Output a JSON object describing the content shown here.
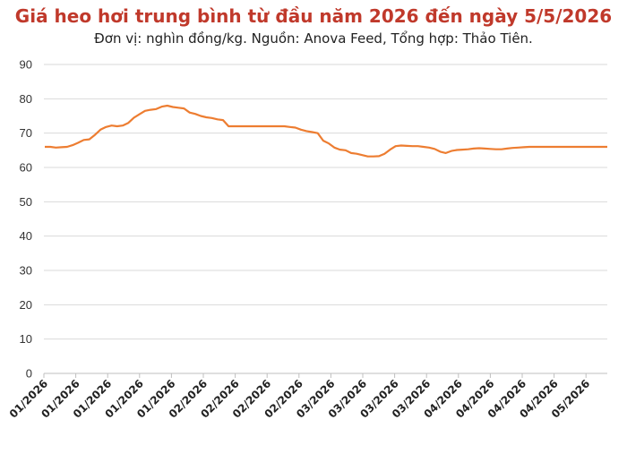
{
  "chart_data": {
    "type": "line",
    "title": "Giá heo hơi trung bình từ đầu năm 2026 đến ngày 5/5/2026",
    "subtitle": "Đơn vị: nghìn đồng/kg. Nguồn: Anova Feed, Tổng hợp: Thảo Tiên.",
    "xlabel": "",
    "ylabel": "",
    "ylim": [
      0,
      90
    ],
    "yticks": [
      0,
      10,
      20,
      30,
      40,
      50,
      60,
      70,
      80,
      90
    ],
    "grid": true,
    "legend": "none",
    "line_color": "#ed7d31",
    "grid_color": "#d9d9d9",
    "xtick_labels": [
      "01/2026",
      "01/2026",
      "01/2026",
      "01/2026",
      "01/2026",
      "02/2026",
      "02/2026",
      "02/2026",
      "02/2026",
      "03/2026",
      "03/2026",
      "03/2026",
      "03/2026",
      "04/2026",
      "04/2026",
      "04/2026",
      "04/2026",
      "05/2026"
    ],
    "series": [
      {
        "values": [
          66,
          66,
          65.8,
          65.9,
          66,
          66.5,
          67.2,
          68,
          68.2,
          69.5,
          71,
          71.8,
          72.2,
          72,
          72.2,
          73,
          74.5,
          75.5,
          76.5,
          76.8,
          77,
          77.7,
          78,
          77.6,
          77.4,
          77.2,
          76,
          75.6,
          75,
          74.6,
          74.4,
          74,
          73.8,
          72,
          72,
          72,
          72,
          72,
          72,
          72,
          72,
          72,
          72,
          72,
          71.8,
          71.6,
          71,
          70.6,
          70.3,
          70,
          67.8,
          67,
          65.8,
          65.2,
          65,
          64.2,
          64,
          63.6,
          63.2,
          63.2,
          63.3,
          64,
          65.2,
          66.2,
          66.4,
          66.3,
          66.2,
          66.2,
          66,
          65.8,
          65.4,
          64.6,
          64.2,
          64.8,
          65.1,
          65.2,
          65.3,
          65.5,
          65.6,
          65.5,
          65.4,
          65.3,
          65.3,
          65.5,
          65.7,
          65.8,
          65.9,
          66,
          66,
          66,
          66,
          66,
          66,
          66,
          66,
          66,
          66,
          66,
          66,
          66,
          66,
          66
        ]
      }
    ]
  }
}
